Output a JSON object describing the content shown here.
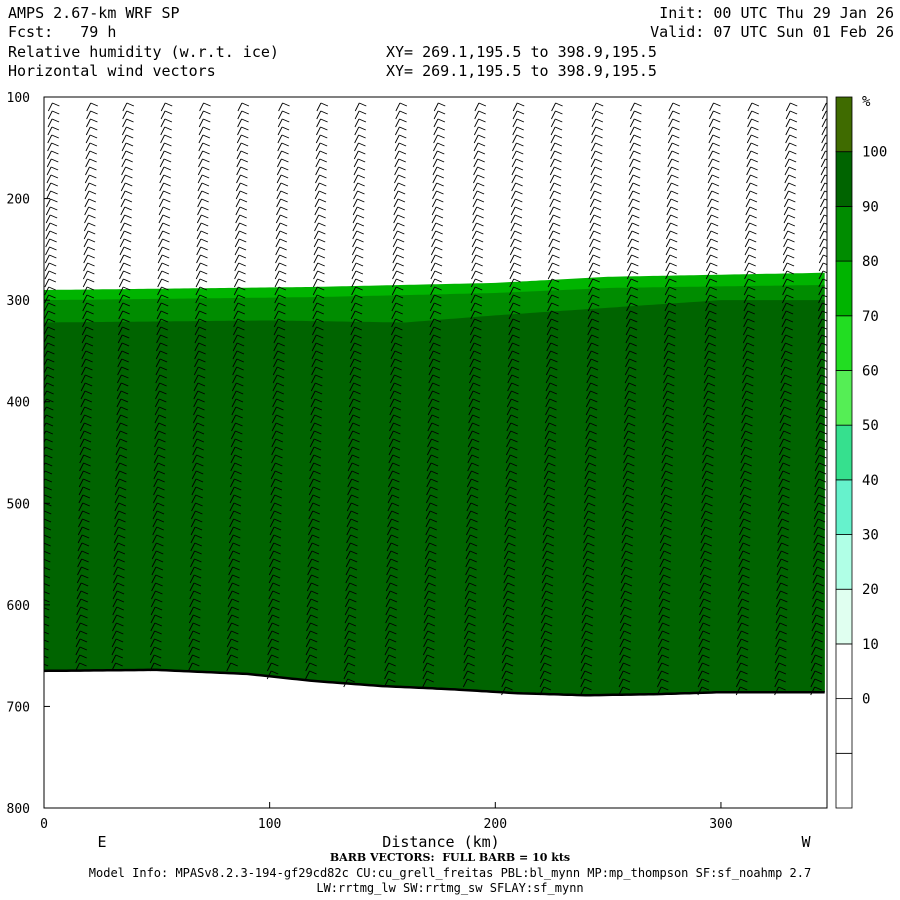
{
  "header": {
    "model": "AMPS 2.67-km WRF SP",
    "fcst": "Fcst:   79 h",
    "field1": "Relative humidity (w.r.t. ice)",
    "field2": "Horizontal wind vectors",
    "coords1": "XY= 269.1,195.5 to 398.9,195.5",
    "coords2": "XY= 269.1,195.5 to 398.9,195.5",
    "init": "Init: 00 UTC Thu 29 Jan 26",
    "valid": "Valid: 07 UTC Sun 01 Feb 26"
  },
  "chart_data": {
    "type": "heatmap",
    "xlabel": "Distance (km)",
    "ylabel": "",
    "x_ticks": [
      0,
      100,
      200,
      300
    ],
    "y_ticks": [
      100,
      200,
      300,
      400,
      500,
      600,
      700,
      800
    ],
    "xlim": [
      0,
      347
    ],
    "ylim": [
      800,
      100
    ],
    "left_end_label": "E",
    "right_end_label": "W",
    "colorbar": {
      "unit": "%",
      "levels": [
        0,
        10,
        20,
        30,
        40,
        50,
        60,
        70,
        80,
        90,
        100
      ],
      "colors": [
        "#ffffff",
        "#ffffff",
        "#ffffff",
        "#e0fff0",
        "#b0ffe6",
        "#66f2cc",
        "#36e08e",
        "#55ee55",
        "#22dd22",
        "#00b400",
        "#008c00",
        "#006400",
        "#3f6b00"
      ]
    },
    "terrain_pressure": [
      [
        0,
        665
      ],
      [
        50,
        664
      ],
      [
        90,
        668
      ],
      [
        120,
        675
      ],
      [
        150,
        680
      ],
      [
        180,
        683
      ],
      [
        210,
        687
      ],
      [
        240,
        689
      ],
      [
        270,
        688
      ],
      [
        300,
        686
      ],
      [
        347,
        686
      ]
    ],
    "rh_layers": [
      {
        "rh": 70,
        "top": [
          [
            0,
            290
          ],
          [
            120,
            287
          ],
          [
            200,
            283
          ],
          [
            250,
            277
          ],
          [
            347,
            273
          ]
        ]
      },
      {
        "rh": 80,
        "top": [
          [
            0,
            300
          ],
          [
            120,
            297
          ],
          [
            200,
            293
          ],
          [
            250,
            288
          ],
          [
            347,
            285
          ]
        ]
      },
      {
        "rh": 90,
        "top": [
          [
            0,
            322
          ],
          [
            100,
            320
          ],
          [
            160,
            322
          ],
          [
            200,
            315
          ],
          [
            300,
            300
          ],
          [
            347,
            300
          ]
        ]
      }
    ],
    "barb_columns_x": [
      2,
      19,
      35,
      52,
      69,
      86,
      104,
      121,
      138,
      156,
      173,
      191,
      208,
      225,
      243,
      260,
      277,
      295,
      312,
      329,
      345
    ],
    "barb_note": "BARB VECTORS:  FULL BARB = 10 kts"
  },
  "footer": {
    "barb_note": "BARB VECTORS:  FULL BARB = 10 kts",
    "model_info": "Model Info: MPASv8.2.3-194-gf29cd82c CU:cu_grell_freitas PBL:bl_mynn MP:mp_thompson SF:sf_noahmp 2.7",
    "model_info2": "LW:rrtmg_lw SW:rrtmg_sw SFLAY:sf_mynn"
  }
}
